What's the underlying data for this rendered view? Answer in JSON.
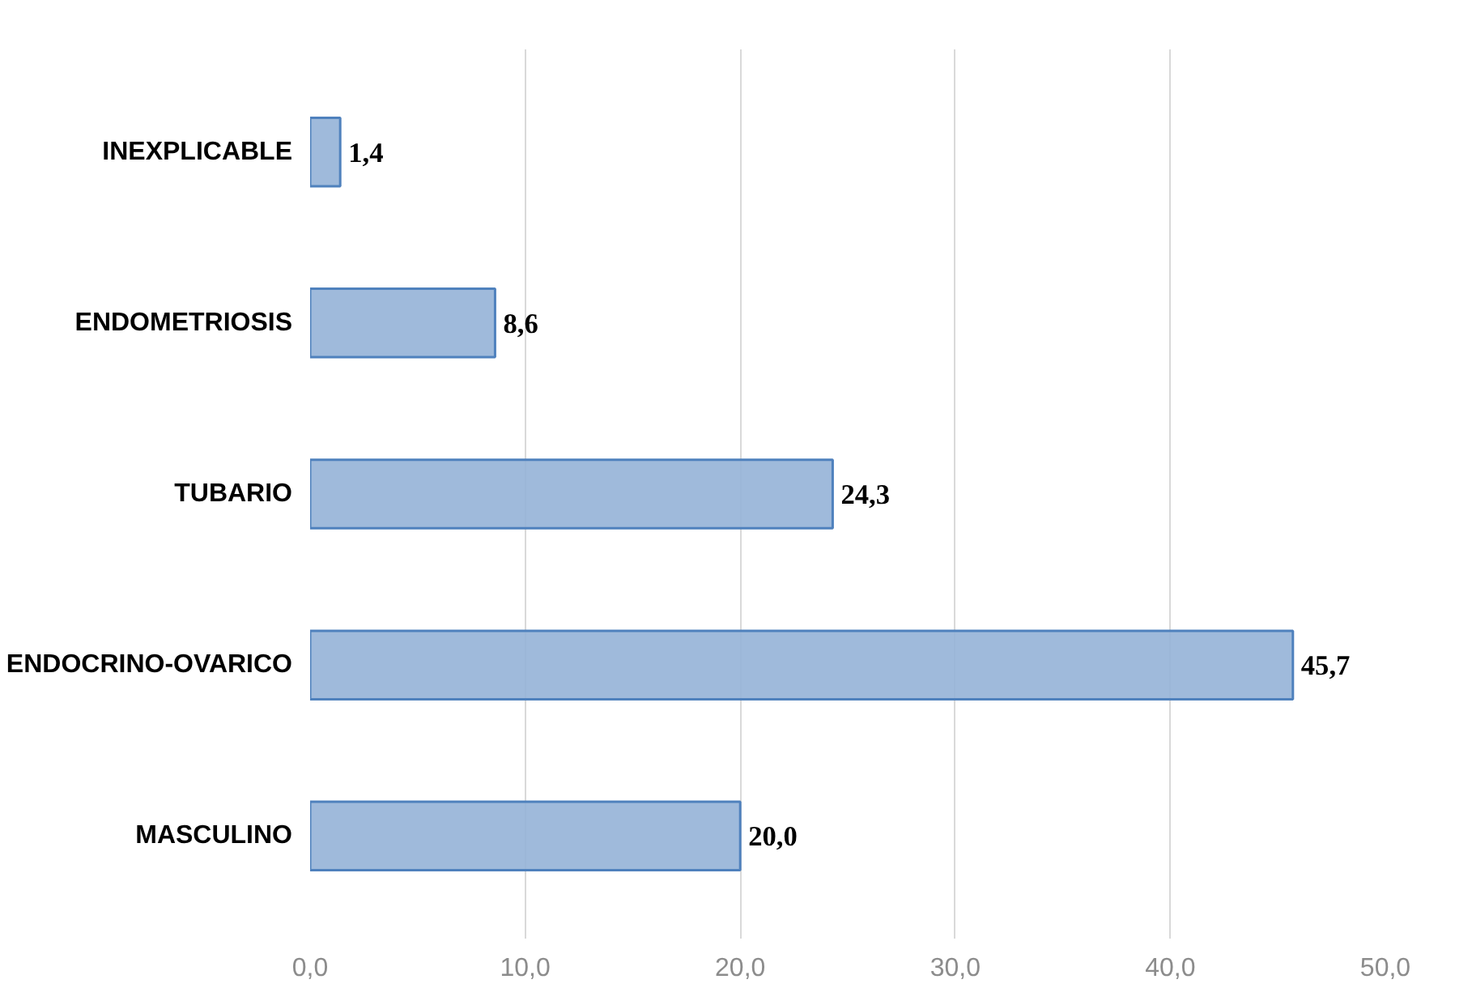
{
  "chart_data": {
    "type": "bar",
    "orientation": "horizontal",
    "categories": [
      "INEXPLICABLE",
      "ENDOMETRIOSIS",
      "TUBARIO",
      "ENDOCRINO-OVARICO",
      "MASCULINO"
    ],
    "values": [
      1.4,
      8.6,
      24.3,
      45.7,
      20.0
    ],
    "value_labels": [
      "1,4",
      "8,6",
      "24,3",
      "45,7",
      "20,0"
    ],
    "color": "#95b3d7",
    "xlim": [
      0,
      50
    ],
    "xticks": [
      {
        "value": 0,
        "label": "0,0"
      },
      {
        "value": 10,
        "label": "10,0"
      },
      {
        "value": 20,
        "label": "20,0"
      },
      {
        "value": 30,
        "label": "30,0"
      },
      {
        "value": 40,
        "label": "40,0"
      },
      {
        "value": 50,
        "label": "50,0"
      }
    ],
    "grid": "x"
  }
}
